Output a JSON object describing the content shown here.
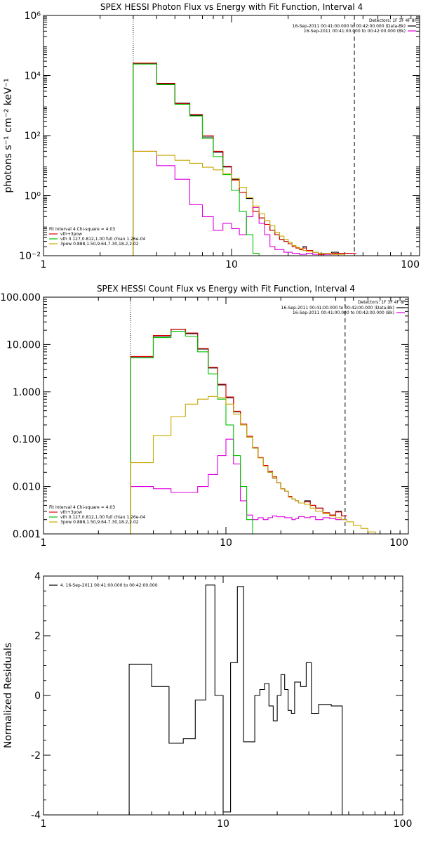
{
  "chart_data": [
    {
      "type": "line",
      "title": "SPEX HESSI Photon Flux vs Energy with Fit Function, Interval 4",
      "ylabel": "photons s⁻¹ cm⁻² keV⁻¹",
      "xlabel": "",
      "xscale": "log",
      "yscale": "log",
      "xlim": [
        1,
        100
      ],
      "ylim": [
        0.01,
        1000000
      ],
      "x_ticks": [
        {
          "v": 1,
          "label": "1"
        },
        {
          "v": 10,
          "label": "10"
        },
        {
          "v": 100,
          "label": "100"
        }
      ],
      "y_ticks": [
        {
          "v": 0.01,
          "label": "10⁻²"
        },
        {
          "v": 1,
          "label": "10⁰"
        },
        {
          "v": 100,
          "label": "10²"
        },
        {
          "v": 10000,
          "label": "10⁴"
        },
        {
          "v": 1000000,
          "label": "10⁶"
        }
      ],
      "vlines": [
        {
          "x": 3,
          "style": "dotted"
        },
        {
          "x": 45,
          "style": "dashed"
        }
      ],
      "legend_right": {
        "placement": "top-right",
        "header": "Detectors: 1F 3F 4F 8F",
        "entries": [
          {
            "text": "16-Sep-2011 00:41:00.000 to 00:42:00.000 (Data-Bk)",
            "color": "#000000"
          },
          {
            "text": "16-Sep-2011 00:41:00.000 to 00:42:00.000 (Bk)",
            "color": "#e000e0"
          }
        ]
      },
      "legend_left": {
        "placement": "bottom-left",
        "header": "Fit Interval 4   Chi-square = 4.03",
        "entries": [
          {
            "text": "vth+3pow",
            "color": "#e00000"
          },
          {
            "text": "vth 0.127,0.812,1.00  full chian 1.26e-04",
            "color": "#00c000"
          },
          {
            "text": "3pow 0.888,1.50,9.64,7.30,18.2,2.02",
            "color": "#c8a800"
          }
        ]
      },
      "x_edges": [
        3,
        4,
        5,
        6,
        7,
        8,
        9,
        10,
        11,
        12,
        13,
        14,
        15,
        16,
        17,
        18,
        19,
        20,
        21,
        22,
        23,
        24,
        25,
        27,
        29,
        31,
        34,
        37,
        40,
        43,
        46
      ],
      "series": [
        {
          "name": "Data-Bk",
          "color": "#000000",
          "x0": 3,
          "values": [
            25000,
            5200,
            1200,
            480,
            90,
            28,
            9,
            3.5,
            1.3,
            0.8,
            0.3,
            0.18,
            0.11,
            0.07,
            0.05,
            0.035,
            0.03,
            0.025,
            0.02,
            0.018,
            0.016,
            0.02,
            0.015,
            0.013,
            0.011,
            0.012,
            0.013,
            0.012,
            0.012,
            0.012
          ]
        },
        {
          "name": "Bk",
          "color": "#e000e0",
          "x0": 3,
          "values": [
            30,
            10,
            3.5,
            0.5,
            0.2,
            0.07,
            0.12,
            0.08,
            0.05,
            0.2,
            0.4,
            0.12,
            0.05,
            0.02,
            0.016,
            0.016,
            0.013,
            0.013,
            0.012,
            0.012,
            0.011,
            0.011,
            0.012,
            0.011,
            0.01,
            0.011,
            0.011,
            0.01,
            0.01,
            0.01
          ]
        },
        {
          "name": "vth+3pow",
          "color": "#e00000",
          "x0": 3,
          "values": [
            26000,
            5500,
            1150,
            500,
            100,
            30,
            9.5,
            3.3,
            1.3,
            0.85,
            0.3,
            0.18,
            0.11,
            0.07,
            0.05,
            0.035,
            0.03,
            0.025,
            0.02,
            0.018,
            0.016,
            0.018,
            0.015,
            0.013,
            0.011,
            0.012,
            0.012,
            0.012,
            0.012,
            0.012
          ]
        },
        {
          "name": "vth 0.127,0.812,1.00",
          "color": "#00c000",
          "x0": 3,
          "values": [
            24000,
            5000,
            1100,
            450,
            80,
            20,
            5,
            1.5,
            0.3,
            0.05,
            0.012,
            0.01,
            0.01,
            0.01,
            0.01,
            0.01,
            0.01,
            0.01,
            0.01,
            0.01,
            0.01,
            0.01,
            0.01,
            0.01,
            0.01,
            0.01,
            0.01,
            0.01,
            0.01,
            0.01
          ]
        },
        {
          "name": "3pow 0.888,1.50,9.64,7.30,18.2,2.02",
          "color": "#c8a800",
          "x0": 3,
          "values": [
            30,
            22,
            15,
            12,
            8.8,
            7.2,
            5.3,
            3.7,
            1.9,
            0.85,
            0.45,
            0.25,
            0.15,
            0.1,
            0.06,
            0.045,
            0.035,
            0.028,
            0.022,
            0.019,
            0.017,
            0.015,
            0.014,
            0.013,
            0.012,
            0.012,
            0.011,
            0.011,
            0.01,
            0.01
          ]
        }
      ]
    },
    {
      "type": "line",
      "title": "SPEX HESSI Count Flux vs Energy with Fit Function, Interval 4",
      "ylabel": "",
      "xlabel": "",
      "xscale": "log",
      "yscale": "log",
      "xlim": [
        1,
        100
      ],
      "ylim": [
        0.001,
        100
      ],
      "x_ticks": [
        {
          "v": 1,
          "label": "1"
        },
        {
          "v": 10,
          "label": "10"
        },
        {
          "v": 100,
          "label": "100"
        }
      ],
      "y_ticks": [
        {
          "v": 0.001,
          "label": "0.001"
        },
        {
          "v": 0.01,
          "label": "0.010"
        },
        {
          "v": 0.1,
          "label": "0.100"
        },
        {
          "v": 1,
          "label": "1.000"
        },
        {
          "v": 10,
          "label": "10.000"
        },
        {
          "v": 100,
          "label": "100.000"
        }
      ],
      "vlines": [
        {
          "x": 3,
          "style": "dotted"
        },
        {
          "x": 45,
          "style": "dashed"
        }
      ],
      "legend_right": {
        "placement": "top-right",
        "header": "Detectors: 1F 3F 4F 8F",
        "entries": [
          {
            "text": "16-Sep-2011 00:41:00.000 to 00:42:00.000 (Data-Bk)",
            "color": "#000000"
          },
          {
            "text": "16-Sep-2011 00:41:00.000 to 00:42:00.000 (Bk)",
            "color": "#e000e0"
          }
        ]
      },
      "legend_left": {
        "placement": "bottom-left",
        "header": "Fit Interval 4   Chi-square = 4.03",
        "entries": [
          {
            "text": "vth+3pow",
            "color": "#e00000"
          },
          {
            "text": "vth 0.127,0.812,1.00  full chian 1.26e-04",
            "color": "#00c000"
          },
          {
            "text": "3pow 0.888,1.50,9.64,7.30,18.2,2.02",
            "color": "#c8a800"
          }
        ]
      },
      "x_edges": [
        3,
        4,
        5,
        6,
        7,
        8,
        9,
        10,
        11,
        12,
        13,
        14,
        15,
        16,
        17,
        18,
        19,
        20,
        21,
        22,
        23,
        24,
        25,
        27,
        29,
        31,
        34,
        37,
        40,
        43,
        46,
        50,
        55,
        60,
        66,
        72
      ],
      "series": [
        {
          "name": "Data-Bk",
          "color": "#000000",
          "x0": 3,
          "values": [
            5.5,
            15,
            21,
            17,
            8,
            3.2,
            1.4,
            0.75,
            0.38,
            0.2,
            0.11,
            0.065,
            0.04,
            0.027,
            0.02,
            0.015,
            0.012,
            0.009,
            0.008,
            0.006,
            0.0055,
            0.005,
            0.0045,
            0.005,
            0.004,
            0.0035,
            0.0028,
            0.0025,
            0.003,
            0.0024
          ]
        },
        {
          "name": "Bk",
          "color": "#e000e0",
          "x0": 3,
          "values": [
            0.01,
            0.009,
            0.0075,
            0.0075,
            0.01,
            0.018,
            0.045,
            0.1,
            0.03,
            0.005,
            0.0025,
            0.002,
            0.0022,
            0.002,
            0.0022,
            0.0024,
            0.0023,
            0.0023,
            0.0022,
            0.0022,
            0.002,
            0.0021,
            0.0023,
            0.0022,
            0.0023,
            0.002,
            0.0022,
            0.0021,
            0.002,
            0.002
          ]
        },
        {
          "name": "vth+3pow",
          "color": "#e00000",
          "x0": 3,
          "values": [
            5.6,
            15.5,
            21,
            17.5,
            8.2,
            3.3,
            1.45,
            0.78,
            0.39,
            0.21,
            0.115,
            0.067,
            0.041,
            0.028,
            0.021,
            0.016,
            0.012,
            0.009,
            0.008,
            0.0062,
            0.0055,
            0.005,
            0.0045,
            0.0048,
            0.004,
            0.0035,
            0.0028,
            0.0025,
            0.0029,
            0.0024
          ]
        },
        {
          "name": "vth 0.127,0.812,1.00",
          "color": "#00c000",
          "x0": 3,
          "values": [
            5.2,
            14,
            19,
            15,
            7,
            2.4,
            0.7,
            0.2,
            0.045,
            0.01,
            0.002,
            0.001,
            0.001,
            0.001,
            0.001,
            0.001,
            0.001,
            0.001,
            0.001,
            0.001,
            0.001,
            0.001,
            0.001,
            0.001,
            0.001,
            0.001,
            0.001,
            0.001,
            0.001,
            0.001
          ]
        },
        {
          "name": "3pow 0.888,1.50,9.64,7.30,18.2,2.02",
          "color": "#c8a800",
          "x0": 3,
          "values": [
            0.032,
            0.12,
            0.3,
            0.55,
            0.7,
            0.8,
            0.75,
            0.55,
            0.34,
            0.2,
            0.11,
            0.065,
            0.04,
            0.027,
            0.02,
            0.015,
            0.012,
            0.009,
            0.008,
            0.006,
            0.0055,
            0.005,
            0.0045,
            0.0042,
            0.0035,
            0.003,
            0.0027,
            0.0024,
            0.0022,
            0.002,
            0.0018,
            0.0015,
            0.0013,
            0.0011,
            0.001
          ]
        }
      ]
    },
    {
      "type": "line",
      "title": "",
      "ylabel": "Normalized Residuals",
      "xlabel": "",
      "xscale": "log",
      "yscale": "linear",
      "xlim": [
        1,
        100
      ],
      "ylim": [
        -4,
        4
      ],
      "x_ticks": [
        {
          "v": 1,
          "label": "1"
        },
        {
          "v": 10,
          "label": "10"
        },
        {
          "v": 100,
          "label": "100"
        }
      ],
      "y_ticks": [
        {
          "v": -4,
          "label": "-4"
        },
        {
          "v": -2,
          "label": "-2"
        },
        {
          "v": 0,
          "label": "0"
        },
        {
          "v": 2,
          "label": "2"
        },
        {
          "v": 4,
          "label": "4"
        }
      ],
      "vlines": [],
      "legend_left": {
        "placement": "top-left",
        "header": "",
        "entries": [
          {
            "text": "4. 16-Sep-2011 00:41:00.000 to 00:42:00.000",
            "color": "#000000"
          }
        ]
      },
      "x_edges": [
        3,
        4,
        5,
        6,
        7,
        8,
        9,
        10,
        11,
        12,
        13,
        14,
        15,
        16,
        17,
        18,
        19,
        20,
        21,
        22,
        23,
        24,
        25,
        27,
        29,
        31,
        34,
        37,
        40,
        43,
        46
      ],
      "series": [
        {
          "name": "Residuals",
          "color": "#000000",
          "x0": 3,
          "to_floor": true,
          "values": [
            1.05,
            0.3,
            -1.6,
            -1.45,
            -0.15,
            3.7,
            0.0,
            -3.9,
            1.1,
            3.65,
            -1.55,
            -1.55,
            0.0,
            0.2,
            0.4,
            -0.35,
            -0.85,
            0.0,
            0.7,
            0.2,
            -0.5,
            -0.6,
            0.45,
            0.3,
            1.1,
            -0.6,
            -0.3,
            -0.3,
            -0.35,
            -0.35
          ]
        }
      ]
    }
  ]
}
